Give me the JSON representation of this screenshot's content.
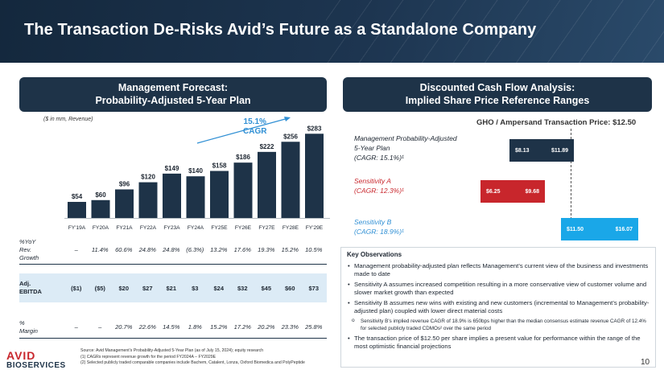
{
  "header": {
    "title": "The Transaction De-Risks Avid’s Future as a Standalone Company"
  },
  "left_panel": {
    "title_line1": "Management Forecast:",
    "title_line2": "Probability-Adjusted 5-Year Plan",
    "units": "($ in mm, Revenue)",
    "cagr_line1": "15.1%",
    "cagr_line2": "CAGR"
  },
  "chart_data": {
    "type": "bar",
    "categories": [
      "FY'19A",
      "FY20A",
      "FY21A",
      "FY22A",
      "FY23A",
      "FY24A",
      "FY25E",
      "FY26E",
      "FY27E",
      "FY28E",
      "FY'29E"
    ],
    "values": [
      54,
      60,
      96,
      120,
      149,
      140,
      158,
      186,
      222,
      256,
      283
    ],
    "value_labels": [
      "$54",
      "$60",
      "$96",
      "$120",
      "$149",
      "$140",
      "$158",
      "$186",
      "$222",
      "$256",
      "$283"
    ],
    "title": "Management Forecast: Probability-Adjusted 5-Year Plan",
    "ylabel": "($ in mm, Revenue)",
    "xlabel": "",
    "ylim": [
      0,
      300
    ],
    "color": "#1e3348",
    "annotation": "15.1% CAGR"
  },
  "table": {
    "growth": {
      "label_line1": "%YoY",
      "label_line2": "Rev.",
      "label_line3": "Growth",
      "values": [
        "–",
        "11.4%",
        "60.6%",
        "24.8%",
        "24.8%",
        "(6.3%)",
        "13.2%",
        "17.6%",
        "19.3%",
        "15.2%",
        "10.5%"
      ]
    },
    "ebitda": {
      "label_line1": "Adj.",
      "label_line2": "EBITDA",
      "values": [
        "($1)",
        "($5)",
        "$20",
        "$27",
        "$21",
        "$3",
        "$24",
        "$32",
        "$45",
        "$60",
        "$73"
      ]
    },
    "margin": {
      "label_line1": "%",
      "label_line2": "Margin",
      "values": [
        "–",
        "–",
        "20.7%",
        "22.6%",
        "14.5%",
        "1.8%",
        "15.2%",
        "17.2%",
        "20.2%",
        "23.3%",
        "25.8%"
      ]
    }
  },
  "footer": {
    "logo_line1": "AVID",
    "logo_line2": "BIOSERVICES",
    "source": "Source: Avid Management’s Probability-Adjusted 5-Year Plan (as of July 15, 2024); equity research",
    "note1": "(1)    CAGRs represent revenue growth for the period FY2024A – FY2029E",
    "note2": "(2)    Selected publicly traded comparable companies include Bachem, Catalent, Lonza, Oxford Biomedica and PolyPeptide",
    "page_number": "10"
  },
  "right_panel": {
    "title_line1": "Discounted Cash Flow Analysis:",
    "title_line2": "Implied Share Price Reference Ranges",
    "reference_price": "GHO / Ampersand Transaction Price: $12.50",
    "scenarios": [
      {
        "line1": "Management Probability-Adjusted",
        "line2": "5-Year Plan",
        "line3": "(CAGR: 15.1%)¹",
        "low": "$8.13",
        "high": "$11.89",
        "color": "#1e3348"
      },
      {
        "line1": "Sensitivity A",
        "line2": "(CAGR: 12.3%)¹",
        "low": "$6.25",
        "high": "$9.68",
        "color": "#c8262c"
      },
      {
        "line1": "Sensitivity B",
        "line2": "(CAGR: 18.9%)¹",
        "low": "$11.50",
        "high": "$16.07",
        "color": "#1aa7e8"
      }
    ]
  },
  "observations": {
    "title": "Key Observations",
    "b1": "Management probability-adjusted plan reflects Management’s current view of the business and investments made to date",
    "b2": "Sensitivity A assumes increased competition resulting in a more conservative view of customer volume and slower market growth than expected",
    "b3": "Sensitivity B assumes new wins with existing and new customers (incremental to Management’s probability-adjusted plan) coupled with lower direct material costs",
    "sub1": "Sensitivity B’s implied revenue CAGR of 18.9% is 650bps higher than the median consensus estimate revenue CAGR of 12.4% for selected publicly traded CDMOs² over the same period",
    "b4": "The transaction price of $12.50 per share implies a present value for performance within the range of the most optimistic financial projections"
  }
}
